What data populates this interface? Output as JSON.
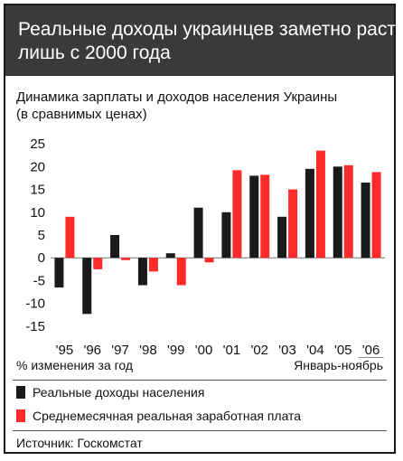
{
  "header": {
    "title_line1": "Реальные доходы украинцев заметно растут",
    "title_line2": "лишь с 2000 года"
  },
  "subtitle": {
    "line1": "Динамика зарплаты и доходов населения Украины",
    "line2": "(в сравнимых ценах)"
  },
  "chart_data": {
    "type": "bar",
    "categories": [
      "'95",
      "'96",
      "'97",
      "'98",
      "'99",
      "'00",
      "'01",
      "'02",
      "'03",
      "'04",
      "'05",
      "'06"
    ],
    "series": [
      {
        "name": "Реальные доходы населения",
        "color": "#1a1a1a",
        "values": [
          -6.5,
          -12.3,
          5.0,
          -6.0,
          1.0,
          11.0,
          10.0,
          18.0,
          9.0,
          19.5,
          20.0,
          16.5
        ]
      },
      {
        "name": "Среднемесячная реальная заработная плата",
        "color": "#ff2a2a",
        "values": [
          9.0,
          -2.5,
          -0.5,
          -3.0,
          -6.0,
          -1.0,
          19.2,
          18.2,
          15.0,
          23.5,
          20.3,
          18.8
        ]
      }
    ],
    "yticks": [
      25,
      20,
      15,
      10,
      5,
      0,
      -5,
      -10,
      -15
    ],
    "ylim": [
      -16,
      26
    ],
    "xlabel": "% изменения за год",
    "x_note": "Январь-ноябрь",
    "grid": false,
    "legend": "bottom"
  },
  "source": "Источник: Госкомстат"
}
